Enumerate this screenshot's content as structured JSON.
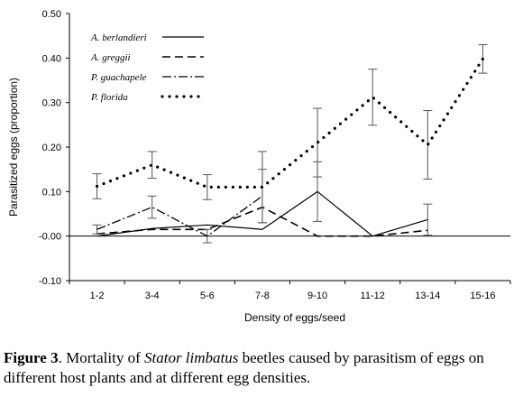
{
  "chart_data": {
    "type": "line",
    "title": "",
    "xlabel": "Density of eggs/seed",
    "ylabel": "Parasitized eggs (proportion)",
    "categories": [
      "1-2",
      "3-4",
      "5-6",
      "7-8",
      "9-10",
      "11-12",
      "13-14",
      "15-16"
    ],
    "ylim": [
      -0.1,
      0.5
    ],
    "yticks": [
      "-0.10",
      "-0.00",
      "0.10",
      "0.20",
      "0.30",
      "0.40",
      "0.50"
    ],
    "ytick_values": [
      -0.1,
      0.0,
      0.1,
      0.2,
      0.3,
      0.4,
      0.5
    ],
    "legend_position": "top-left",
    "grid": false,
    "series": [
      {
        "name": "A. berlandieri",
        "style": "solid",
        "values": [
          0.0,
          0.017,
          0.025,
          0.015,
          0.1,
          0.0,
          0.037,
          null
        ],
        "error": [
          0.0,
          0.0,
          0.0,
          0.0,
          0.067,
          0.0,
          0.035,
          null
        ]
      },
      {
        "name": "A. greggii",
        "style": "dashed",
        "values": [
          0.005,
          0.015,
          0.015,
          0.065,
          0.0,
          0.0,
          0.013,
          null
        ],
        "error": [
          0.0,
          0.0,
          0.0,
          0.0,
          0.0,
          0.0,
          0.0,
          null
        ]
      },
      {
        "name": "P. guachapele",
        "style": "dashdot",
        "values": [
          0.015,
          0.065,
          0.0,
          0.09,
          null,
          null,
          null,
          null
        ],
        "error": [
          0.01,
          0.025,
          0.015,
          0.06,
          null,
          null,
          null,
          null
        ]
      },
      {
        "name": "P. florida",
        "style": "dotted",
        "values": [
          0.112,
          0.16,
          0.11,
          0.11,
          0.21,
          0.312,
          0.205,
          0.398
        ],
        "error": [
          0.028,
          0.03,
          0.028,
          0.08,
          0.077,
          0.063,
          0.077,
          0.032
        ]
      }
    ]
  },
  "caption": {
    "label": "Figure 3",
    "text_before": ". Mortality of ",
    "species": "Stator limbatus",
    "text_after": " beetles caused by parasitism of eggs on different host plants and at different egg densities."
  }
}
